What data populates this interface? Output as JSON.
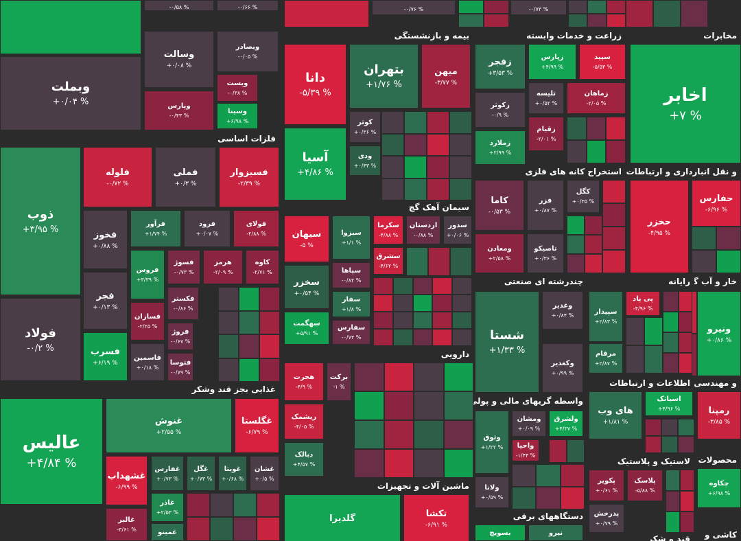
{
  "sectors": [
    {
      "tiles": [
        {
          "change": "-۰/۵۸ %",
          "color": "#4a3d47"
        },
        {
          "change": "-۰/۶۶ %",
          "color": "#4a3d47"
        },
        {
          "change": "-۰/۷۶ %",
          "color": "#4a3d47"
        },
        {
          "change": "-۰/۷۳ %",
          "color": "#4a3d47"
        },
        {
          "name": "وبملت",
          "change": "+۰/۰۴ %",
          "color": "#4a3d47"
        },
        {
          "name": "وسالت",
          "change": "+۰/۰۸ %",
          "color": "#4a3d47"
        },
        {
          "name": "وبصادر",
          "change": "-۰/۰۵ %",
          "color": "#4a3d47"
        },
        {
          "name": "ویست",
          "change": "-۰/۳۸ %",
          "color": "#8a2440"
        },
        {
          "name": "وسینا",
          "change": "+۶/۹۸ %",
          "color": "#10a050"
        },
        {
          "name": "وپارس",
          "change": "-۰/۴۳ %",
          "color": "#8a2440"
        }
      ]
    },
    {
      "name": "فلزات اساسی",
      "tiles": [
        {
          "name": "ذوب",
          "change": "+۳/۹۵ %",
          "color": "#2a8a58"
        },
        {
          "name": "فولاد",
          "change": "-۰/۲ %",
          "color": "#4a3d47"
        },
        {
          "name": "فلوله",
          "change": "-۰/۷۲ %",
          "color": "#c8243f"
        },
        {
          "name": "فملی",
          "change": "+۰/۳ %",
          "color": "#4a3d47"
        },
        {
          "name": "فسبزوار",
          "change": "-۲/۳۹ %",
          "color": "#c8243f"
        },
        {
          "name": "فخوز",
          "change": "+۰/۸۸ %",
          "color": "#4a3d47"
        },
        {
          "name": "فرآور",
          "change": "+۱/۷۴ %",
          "color": "#2d6e50"
        },
        {
          "name": "فرود",
          "change": "+۰/۰۷ %",
          "color": "#4a3d47"
        },
        {
          "name": "فولای",
          "change": "-۲/۸۸ %",
          "color": "#a0233f"
        },
        {
          "name": "فروس",
          "change": "+۳/۳۹ %",
          "color": "#218a50"
        },
        {
          "name": "فسوژ",
          "change": "-۰/۷۳ %",
          "color": "#7a2a44"
        },
        {
          "name": "هرمز",
          "change": "-۲/۰۹ %",
          "color": "#8a2440"
        },
        {
          "name": "کاوه",
          "change": "-۲/۷۱ %",
          "color": "#8a2440"
        },
        {
          "name": "فجر",
          "change": "+۰/۱۳ %",
          "color": "#4a3d47"
        },
        {
          "name": "فکستر",
          "change": "-۰/۸۶ %",
          "color": "#6a2e46"
        },
        {
          "name": "فسازان",
          "change": "-۲/۲۵ %",
          "color": "#8a2440"
        },
        {
          "name": "فروژ",
          "change": "-۰/۶۷ %",
          "color": "#6a2e46"
        },
        {
          "name": "فسرب",
          "change": "+۶/۱۹ %",
          "color": "#10a050"
        },
        {
          "name": "فاسمین",
          "change": "+۰/۱۸ %",
          "color": "#4a3d47"
        },
        {
          "name": "فتوسا",
          "change": "-۰/۷۹ %",
          "color": "#6a2e46"
        }
      ]
    },
    {
      "name": "غذایی بجز قند وشکر",
      "tiles": [
        {
          "name": "عالیس",
          "change": "+۴/۸۴ %",
          "color": "#13a454"
        },
        {
          "name": "غنوش",
          "change": "+۲/۵۵ %",
          "color": "#2a8a58"
        },
        {
          "name": "غگلستا",
          "change": "-۶/۷۹ %",
          "color": "#d8213f"
        },
        {
          "name": "غشهداب",
          "change": "-۶/۹۹ %",
          "color": "#d8213f"
        },
        {
          "name": "غفارس",
          "change": "+۰/۷۳ %",
          "color": "#2d5e48"
        },
        {
          "name": "غگل",
          "change": "+۰/۷۳ %",
          "color": "#2d5e48"
        },
        {
          "name": "غویتا",
          "change": "+۰/۶۸ %",
          "color": "#2d5e48"
        },
        {
          "name": "غشان",
          "change": "+۰/۵ %",
          "color": "#4a3d47"
        },
        {
          "name": "غاذر",
          "change": "+۲/۵۳ %",
          "color": "#218a50"
        },
        {
          "name": "غالبر",
          "change": "-۳/۶۱ %",
          "color": "#8a2440"
        },
        {
          "name": "غمینو",
          "color": "#2d6e50"
        }
      ]
    },
    {
      "name": "بیمه و بازنشستگی",
      "tiles": [
        {
          "name": "دانا",
          "change": "-۵/۳۹ %",
          "color": "#d8213f"
        },
        {
          "name": "بتهران",
          "change": "+۱/۷۶ %",
          "color": "#2d6e50"
        },
        {
          "name": "میهن",
          "change": "-۳/۷۷ %",
          "color": "#a0233f"
        },
        {
          "name": "کوثر",
          "change": "+۰/۳۶ %",
          "color": "#4a3d47"
        },
        {
          "name": "آسیا",
          "change": "+۴/۸۶ %",
          "color": "#13a454"
        },
        {
          "name": "ودی",
          "change": "+۰/۴۳ %",
          "color": "#2d5e48"
        }
      ]
    },
    {
      "name": "سیمان آهک گچ",
      "tiles": [
        {
          "name": "سیهان",
          "change": "-۵ %",
          "color": "#d8213f"
        },
        {
          "name": "سبزوا",
          "change": "+۱/۱ %",
          "color": "#2d6e50"
        },
        {
          "name": "سکرما",
          "change": "-۴/۸۸ %",
          "color": "#d8213f"
        },
        {
          "name": "اردستان",
          "change": "-۰/۸۸ %",
          "color": "#6a2e46"
        },
        {
          "name": "سدور",
          "change": "+۰/۰۶ %",
          "color": "#4a3d47"
        },
        {
          "name": "سشرق",
          "change": "-۴/۶۲ %",
          "color": "#c8243f"
        },
        {
          "name": "سخزر",
          "change": "+۰/۵۴ %",
          "color": "#2d5e48"
        },
        {
          "name": "سپاها",
          "change": "-۰/۸۲ %",
          "color": "#6a2e46"
        },
        {
          "name": "سفار",
          "change": "+۱/۸ %",
          "color": "#2d6e50"
        },
        {
          "name": "سهگمت",
          "change": "+۵/۹۱ %",
          "color": "#10a050"
        },
        {
          "name": "سفارس",
          "change": "-۰/۷۳ %",
          "color": "#6a2e46"
        }
      ]
    },
    {
      "name": "دارویی",
      "tiles": [
        {
          "name": "هجرت",
          "change": "-۴/۹ %",
          "color": "#c8243f"
        },
        {
          "name": "برکت",
          "change": "-۱ %",
          "color": "#6a2e46"
        },
        {
          "name": "ریشمک",
          "change": "-۴/۰۵ %",
          "color": "#c8243f"
        },
        {
          "name": "دبالک",
          "change": "+۴/۵۷ %",
          "color": "#2d6e50"
        }
      ]
    },
    {
      "name": "ماشین آلات و تجهیزات",
      "tiles": [
        {
          "name": "گلدیرا",
          "color": "#13a454"
        },
        {
          "name": "تکشا",
          "change": "-۶/۹۱ %",
          "color": "#d8213f"
        }
      ]
    },
    {
      "name": "زراعت و خدمات وابسته",
      "tiles": [
        {
          "name": "زفجر",
          "change": "+۳/۵۳ %",
          "color": "#2d6e50"
        },
        {
          "name": "زپارس",
          "change": "+۴/۹۹ %",
          "color": "#13a454"
        },
        {
          "name": "سپید",
          "change": "-۵/۵۳ %",
          "color": "#d8213f"
        },
        {
          "name": "زکوثر",
          "change": "-۰/۹ %",
          "color": "#4a3d47"
        },
        {
          "name": "تلیسه",
          "change": "+۰/۵۲ %",
          "color": "#4a3d47"
        },
        {
          "name": "زماهان",
          "change": "-۲/۰۵ %",
          "color": "#a0233f"
        },
        {
          "name": "زملارد",
          "change": "+۲/۹۹ %",
          "color": "#218a50"
        },
        {
          "name": "زقیام",
          "change": "-۲/۰۱ %",
          "color": "#8a2440"
        }
      ]
    },
    {
      "name": "استخراج کانه های فلزی",
      "tiles": [
        {
          "name": "کاما",
          "change": "-۰/۵۳ %",
          "color": "#6a2e46"
        },
        {
          "name": "فزر",
          "change": "+۰/۸۷ %",
          "color": "#4a3d47"
        },
        {
          "name": "کگل",
          "change": "+۰/۳۵ %",
          "color": "#4a3d47"
        },
        {
          "name": "ومعادن",
          "change": "+۲/۵۸ %",
          "color": "#8a2440"
        },
        {
          "name": "تاصیکو",
          "change": "+۰/۳۶ %",
          "color": "#4a3d47"
        }
      ]
    },
    {
      "name": "چندرشته ای صنعتی",
      "tiles": [
        {
          "name": "شستا",
          "change": "+۱/۳۳ %",
          "color": "#2d6e50"
        },
        {
          "name": "وغدیر",
          "change": "+۰/۸۴ %",
          "color": "#4a3d47"
        },
        {
          "name": "وکغدیر",
          "change": "+۰/۹۹ %",
          "color": "#4a3d47"
        }
      ]
    },
    {
      "name": "واسطه گریهای مالی و پولی",
      "tiles": [
        {
          "name": "وثوق",
          "change": "+۱/۲۲ %",
          "color": "#2d6e50"
        },
        {
          "name": "ومشان",
          "change": "+۰/۰۹ %",
          "color": "#4a3d47"
        },
        {
          "name": "ولشرق",
          "change": "+۴/۳۷ %",
          "color": "#13a454"
        },
        {
          "name": "واحیا",
          "change": "-۱/۴۴ %",
          "color": "#a0233f"
        },
        {
          "name": "ولانا",
          "change": "+۰/۵۹ %",
          "color": "#4a3d47"
        }
      ]
    },
    {
      "name": "دستگاههای برقی",
      "tiles": [
        {
          "name": "بسویچ",
          "color": "#10a050"
        },
        {
          "name": "نیرو",
          "color": "#2d6e50"
        }
      ]
    },
    {
      "name": "مخابرات",
      "tiles": [
        {
          "name": "اخابر",
          "change": "+۷ %",
          "color": "#13a454"
        }
      ]
    },
    {
      "name": "و نقل انبارداری و ارتباطات",
      "tiles": [
        {
          "name": "حخزر",
          "change": "-۴/۹۵ %",
          "color": "#d8213f"
        },
        {
          "name": "حفارس",
          "change": "-۶/۹۶ %",
          "color": "#d8213f"
        }
      ]
    },
    {
      "name": "رایانه",
      "tiles": [
        {
          "name": "سپیدار",
          "change": "+۲/۸۳ %",
          "color": "#2d6e50"
        },
        {
          "name": "پی پاد",
          "change": "-۴/۹۶ %",
          "color": "#c8243f"
        },
        {
          "name": "مرقام",
          "change": "+۲/۸۷ %",
          "color": "#2d6e50"
        }
      ]
    },
    {
      "name": "خار و آب گرم",
      "tiles": [
        {
          "name": "ونیرو",
          "change": "+۰/۸۶ %",
          "color": "#13a454"
        }
      ]
    },
    {
      "name": "اطلاعات و ارتباطات",
      "tiles": [
        {
          "name": "اسیاتک",
          "change": "+۴/۹۶ %",
          "color": "#13a454"
        },
        {
          "name": "های وب",
          "change": "+۱/۸۱ %",
          "color": "#2d6e50"
        }
      ]
    },
    {
      "name": "و مهندسی",
      "tiles": [
        {
          "name": "رمپنا",
          "change": "-۳/۸۵ %",
          "color": "#c8243f"
        }
      ]
    },
    {
      "name": "لاستیک و پلاستیک",
      "tiles": [
        {
          "name": "پکویر",
          "change": "+۰/۶۱ %",
          "color": "#8a2440"
        },
        {
          "name": "پلاسک",
          "change": "-۵/۸۸ %",
          "color": "#8a2440"
        },
        {
          "name": "پدرخش",
          "change": "+۰/۷۹ %",
          "color": "#4a3d47"
        }
      ]
    },
    {
      "name": "محصولات",
      "tiles": [
        {
          "name": "چکاوه",
          "change": "+۶/۹۸ %",
          "color": "#13a454"
        }
      ]
    },
    {
      "name": "کاشی و",
      "tiles": []
    },
    {
      "name": "قند و شکر",
      "tiles": []
    }
  ]
}
